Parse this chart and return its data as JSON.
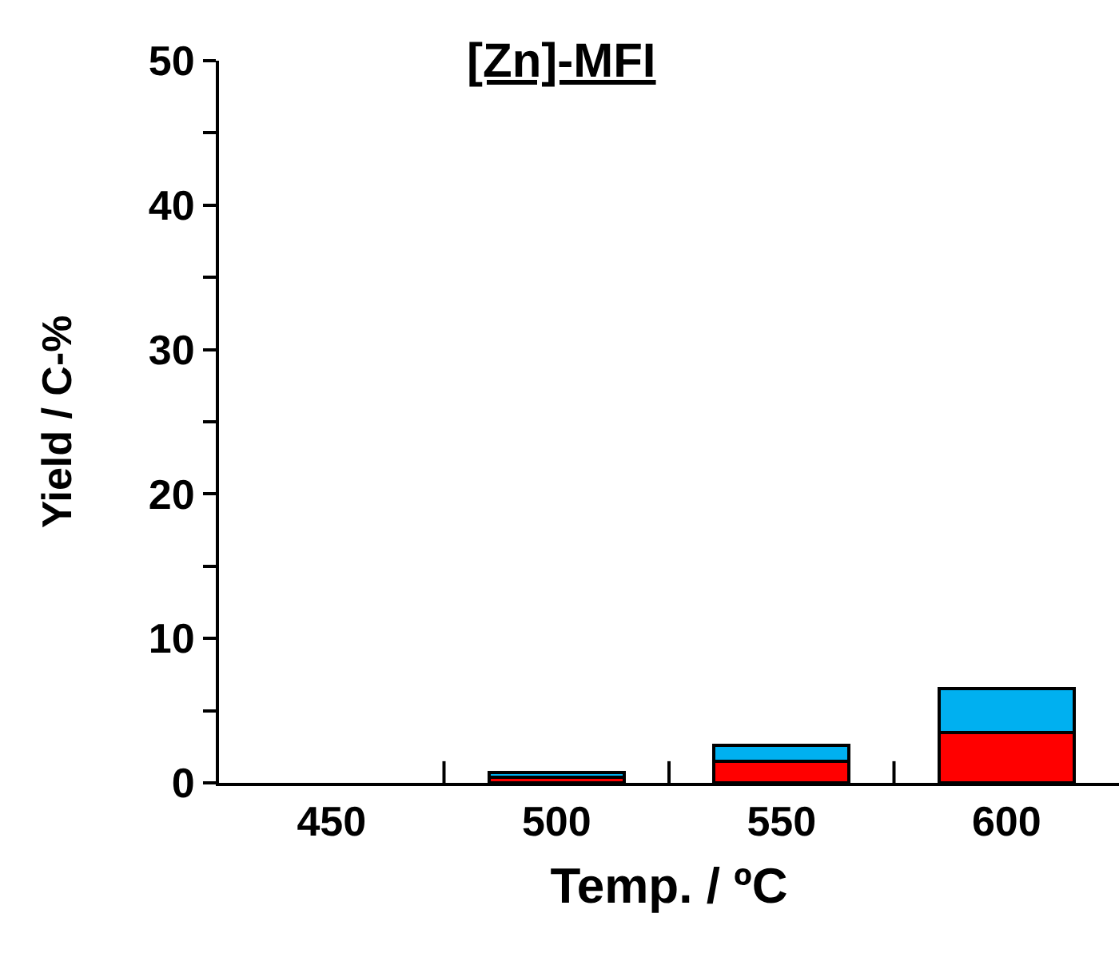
{
  "chart_data": {
    "type": "bar",
    "title": "[Zn]-MFI",
    "xlabel": "Temp. / ºC",
    "ylabel": "Yield / C-%",
    "categories": [
      "450",
      "500",
      "550",
      "600"
    ],
    "stacked": true,
    "series": [
      {
        "color": "#ff0000",
        "values": [
          0,
          0.4,
          1.5,
          3.5
        ]
      },
      {
        "color": "#00b0f0",
        "values": [
          0,
          0.3,
          1.1,
          3.0
        ]
      }
    ],
    "ylim": [
      0,
      50
    ],
    "yticks": [
      0,
      {
        "value": 5,
        "label": null
      },
      10,
      {
        "value": 15,
        "label": null
      },
      20,
      {
        "value": 25,
        "label": null
      },
      30,
      {
        "value": 35,
        "label": null
      },
      40,
      {
        "value": 45,
        "label": null
      },
      50
    ]
  }
}
